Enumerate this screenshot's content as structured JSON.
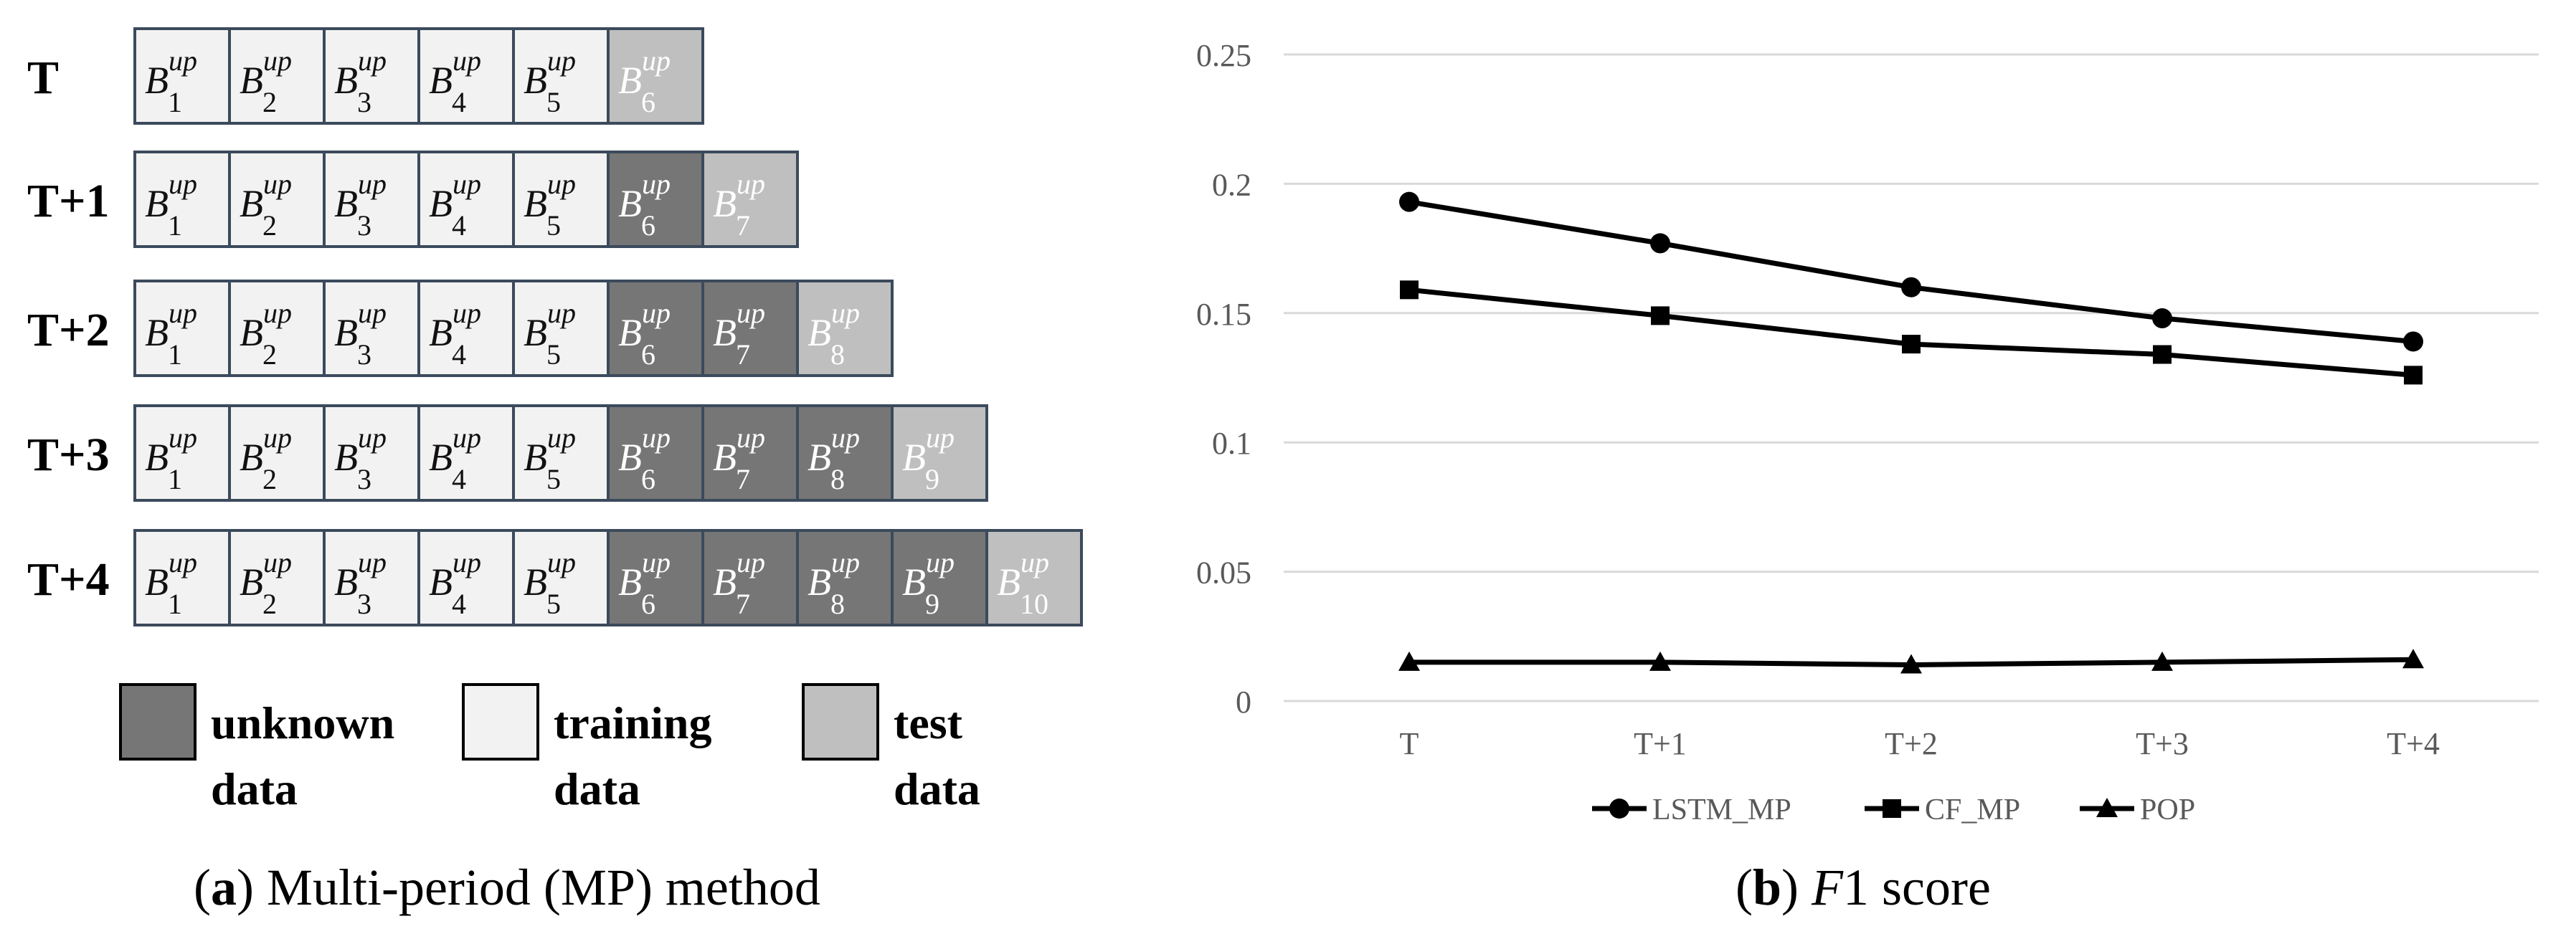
{
  "panel_a": {
    "caption_letter": "a",
    "caption_text": " Multi-period (MP) method",
    "block_symbol": "B",
    "block_superscript": "up",
    "rows": [
      {
        "label": "T",
        "blocks": [
          {
            "index": "1",
            "kind": "training"
          },
          {
            "index": "2",
            "kind": "training"
          },
          {
            "index": "3",
            "kind": "training"
          },
          {
            "index": "4",
            "kind": "training"
          },
          {
            "index": "5",
            "kind": "training"
          },
          {
            "index": "6",
            "kind": "test"
          }
        ]
      },
      {
        "label": "T+1",
        "blocks": [
          {
            "index": "1",
            "kind": "training"
          },
          {
            "index": "2",
            "kind": "training"
          },
          {
            "index": "3",
            "kind": "training"
          },
          {
            "index": "4",
            "kind": "training"
          },
          {
            "index": "5",
            "kind": "training"
          },
          {
            "index": "6",
            "kind": "unknown"
          },
          {
            "index": "7",
            "kind": "test"
          }
        ]
      },
      {
        "label": "T+2",
        "blocks": [
          {
            "index": "1",
            "kind": "training"
          },
          {
            "index": "2",
            "kind": "training"
          },
          {
            "index": "3",
            "kind": "training"
          },
          {
            "index": "4",
            "kind": "training"
          },
          {
            "index": "5",
            "kind": "training"
          },
          {
            "index": "6",
            "kind": "unknown"
          },
          {
            "index": "7",
            "kind": "unknown"
          },
          {
            "index": "8",
            "kind": "test"
          }
        ]
      },
      {
        "label": "T+3",
        "blocks": [
          {
            "index": "1",
            "kind": "training"
          },
          {
            "index": "2",
            "kind": "training"
          },
          {
            "index": "3",
            "kind": "training"
          },
          {
            "index": "4",
            "kind": "training"
          },
          {
            "index": "5",
            "kind": "training"
          },
          {
            "index": "6",
            "kind": "unknown"
          },
          {
            "index": "7",
            "kind": "unknown"
          },
          {
            "index": "8",
            "kind": "unknown"
          },
          {
            "index": "9",
            "kind": "test"
          }
        ]
      },
      {
        "label": "T+4",
        "blocks": [
          {
            "index": "1",
            "kind": "training"
          },
          {
            "index": "2",
            "kind": "training"
          },
          {
            "index": "3",
            "kind": "training"
          },
          {
            "index": "4",
            "kind": "training"
          },
          {
            "index": "5",
            "kind": "training"
          },
          {
            "index": "6",
            "kind": "unknown"
          },
          {
            "index": "7",
            "kind": "unknown"
          },
          {
            "index": "8",
            "kind": "unknown"
          },
          {
            "index": "9",
            "kind": "unknown"
          },
          {
            "index": "10",
            "kind": "test"
          }
        ]
      }
    ],
    "legend": [
      {
        "kind": "unknown",
        "line1": "unknown",
        "line2": "data"
      },
      {
        "kind": "training",
        "line1": "training",
        "line2": "data"
      },
      {
        "kind": "test",
        "line1": "test",
        "line2": "data"
      }
    ],
    "colors": {
      "training": "#f2f2f2",
      "unknown": "#767676",
      "test": "#bfbfbf",
      "border": "#3b4a5c",
      "text_dark": "#111111",
      "text_light": "#ffffff"
    }
  },
  "chart_data": {
    "type": "line",
    "caption_letter": "b",
    "caption_italic": "F",
    "caption_rest": "1 score",
    "categories": [
      "T",
      "T+1",
      "T+2",
      "T+3",
      "T+4"
    ],
    "ylim": [
      0,
      0.25
    ],
    "yticks": [
      "0",
      "0.05",
      "0.1",
      "0.15",
      "0.2",
      "0.25"
    ],
    "grid": true,
    "legend_position": "bottom",
    "series": [
      {
        "name": "LSTM_MP",
        "marker": "circle",
        "values": [
          0.193,
          0.177,
          0.16,
          0.148,
          0.139
        ]
      },
      {
        "name": "CF_MP",
        "marker": "square",
        "values": [
          0.159,
          0.149,
          0.138,
          0.134,
          0.126
        ]
      },
      {
        "name": "POP",
        "marker": "triangle",
        "values": [
          0.015,
          0.015,
          0.014,
          0.015,
          0.016
        ]
      }
    ],
    "colors": {
      "line": "#000000",
      "grid": "#d9d9d9",
      "tick": "#595959"
    }
  }
}
